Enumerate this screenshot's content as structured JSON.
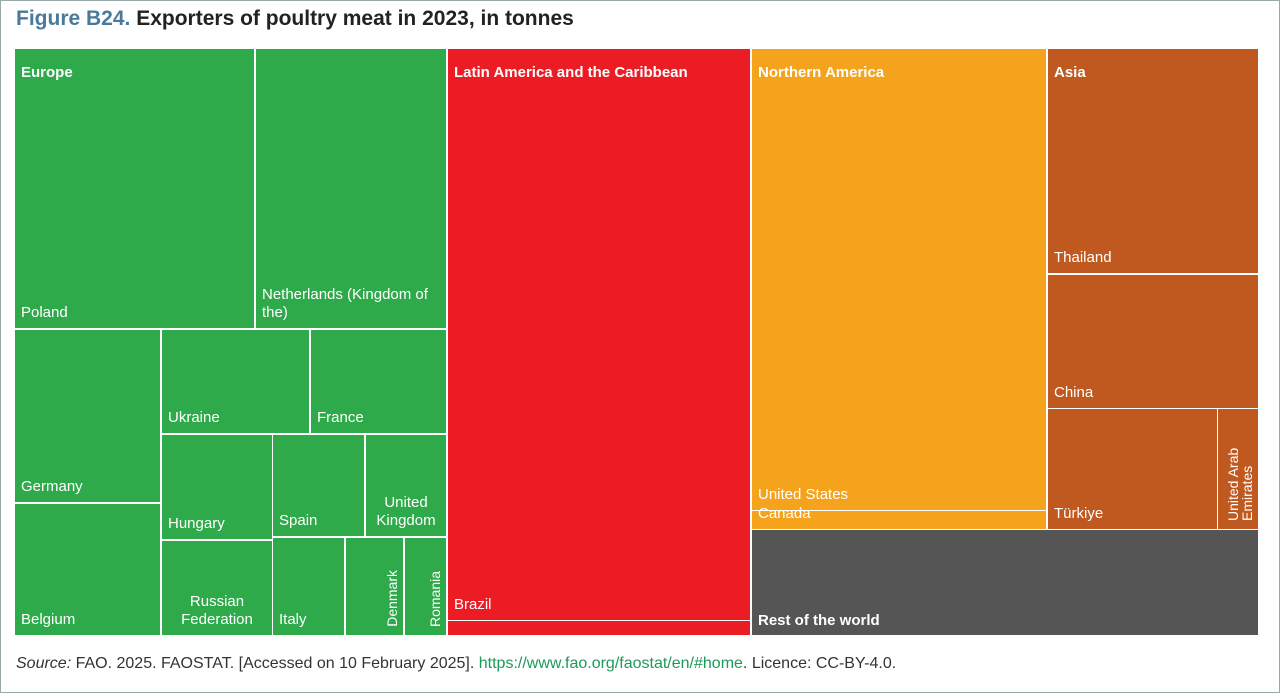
{
  "chart_data": {
    "type": "treemap",
    "title_prefix": "Figure B24.",
    "title": "Exporters of poultry meat in 2023, in tonnes",
    "groups": [
      {
        "name": "Europe",
        "color": "#2faa4b",
        "items": [
          {
            "name": "Poland",
            "value": 2016000
          },
          {
            "name": "Netherlands (Kingdom of the)",
            "value": 1604000
          },
          {
            "name": "Germany",
            "value": 753000
          },
          {
            "name": "Belgium",
            "value": 578000
          },
          {
            "name": "Ukraine",
            "value": 451000
          },
          {
            "name": "France",
            "value": 420000
          },
          {
            "name": "Hungary",
            "value": 340000
          },
          {
            "name": "Russian Federation",
            "value": 311000
          },
          {
            "name": "Spain",
            "value": 273000
          },
          {
            "name": "United Kingdom",
            "value": 245000
          },
          {
            "name": "Italy",
            "value": 207000
          },
          {
            "name": "Denmark",
            "value": 166000
          },
          {
            "name": "Romania",
            "value": 119000
          }
        ]
      },
      {
        "name": "Latin America and the Caribbean",
        "color": "#ec1c24",
        "items": [
          {
            "name": "Brazil",
            "value": 5173000
          },
          {
            "name": null,
            "value": 136000
          }
        ]
      },
      {
        "name": "Northern America",
        "color": "#f5a31d",
        "items": [
          {
            "name": "United States",
            "value": 4066000
          },
          {
            "name": "Canada",
            "value": 159000
          }
        ]
      },
      {
        "name": "Asia",
        "color": "#c0591f",
        "items": [
          {
            "name": "Thailand",
            "value": 1411000
          },
          {
            "name": "China",
            "value": 838000
          },
          {
            "name": "Türkiye",
            "value": 600000
          },
          {
            "name": "United Arab Emirates",
            "value": 143000
          }
        ]
      },
      {
        "name": "Rest of the world",
        "color": "#555555",
        "items": [
          {
            "name": null,
            "value": 1594000
          }
        ]
      }
    ],
    "source_label": "Source:",
    "source_text": "FAO. 2025. FAOSTAT. [Accessed on 10 February 2025].",
    "source_url": "https://www.fao.org/faostat/en/#home",
    "licence": "Licence: CC-BY-4.0."
  }
}
